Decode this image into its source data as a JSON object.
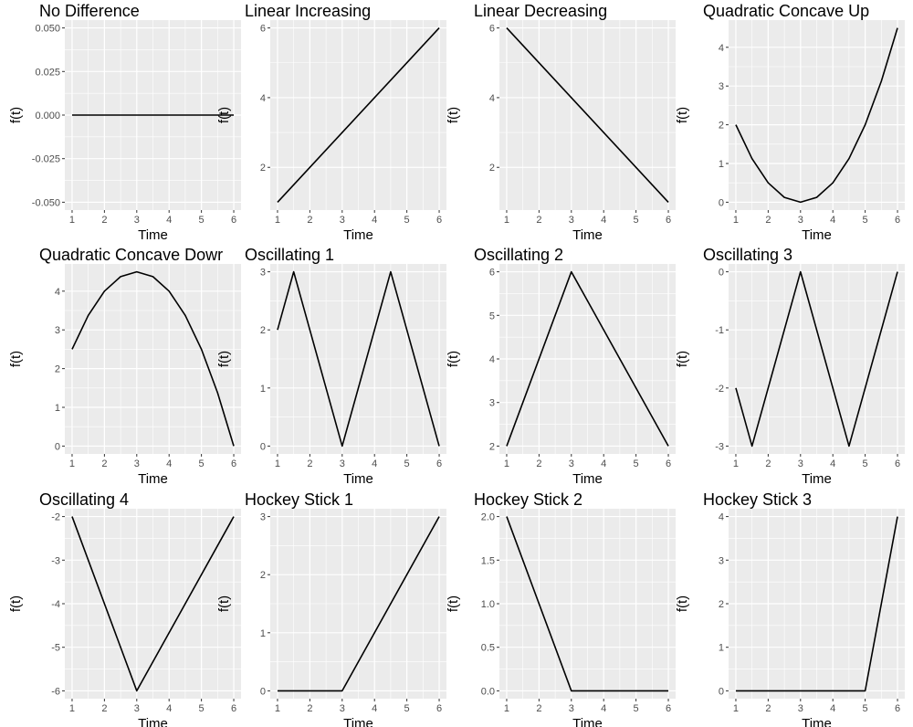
{
  "figure": {
    "background": "#ffffff",
    "panel_background": "#ebebeb",
    "grid_color": "#ffffff",
    "line_color": "#000000"
  },
  "chart_data": [
    {
      "type": "line",
      "title": "No Difference",
      "xlabel": "Time",
      "ylabel": "f(t)",
      "xlim": [
        1,
        6
      ],
      "ylim": [
        -0.05,
        0.05
      ],
      "x_ticks": [
        1,
        2,
        3,
        4,
        5,
        6
      ],
      "x_tick_labels": [
        "1",
        "2",
        "3",
        "4",
        "5",
        "6"
      ],
      "y_ticks": [
        -0.05,
        -0.025,
        0,
        0.025,
        0.05
      ],
      "y_tick_labels": [
        "-0.050",
        "-0.025",
        "0.000",
        "0.025",
        "0.050"
      ],
      "grid": true,
      "curve": "none",
      "series": [
        {
          "x": [
            1,
            6
          ],
          "y": [
            0,
            0
          ]
        }
      ]
    },
    {
      "type": "line",
      "title": "Linear Increasing",
      "xlabel": "Time",
      "ylabel": "f(t)",
      "xlim": [
        1,
        6
      ],
      "ylim": [
        1,
        6
      ],
      "x_ticks": [
        1,
        2,
        3,
        4,
        5,
        6
      ],
      "x_tick_labels": [
        "1",
        "2",
        "3",
        "4",
        "5",
        "6"
      ],
      "y_ticks": [
        2,
        4,
        6
      ],
      "y_tick_labels": [
        "2",
        "4",
        "6"
      ],
      "grid": true,
      "curve": "none",
      "series": [
        {
          "x": [
            1,
            6
          ],
          "y": [
            1,
            6
          ]
        }
      ]
    },
    {
      "type": "line",
      "title": "Linear Decreasing",
      "xlabel": "Time",
      "ylabel": "f(t)",
      "xlim": [
        1,
        6
      ],
      "ylim": [
        1,
        6
      ],
      "x_ticks": [
        1,
        2,
        3,
        4,
        5,
        6
      ],
      "x_tick_labels": [
        "1",
        "2",
        "3",
        "4",
        "5",
        "6"
      ],
      "y_ticks": [
        2,
        4,
        6
      ],
      "y_tick_labels": [
        "2",
        "4",
        "6"
      ],
      "grid": true,
      "curve": "none",
      "series": [
        {
          "x": [
            1,
            6
          ],
          "y": [
            6,
            1
          ]
        }
      ]
    },
    {
      "type": "line",
      "title": "Quadratic Concave Up",
      "xlabel": "Time",
      "ylabel": "f(t)",
      "xlim": [
        1,
        6
      ],
      "ylim": [
        0,
        4.5
      ],
      "x_ticks": [
        1,
        2,
        3,
        4,
        5,
        6
      ],
      "x_tick_labels": [
        "1",
        "2",
        "3",
        "4",
        "5",
        "6"
      ],
      "y_ticks": [
        0,
        1,
        2,
        3,
        4
      ],
      "y_tick_labels": [
        "0",
        "1",
        "2",
        "3",
        "4"
      ],
      "grid": true,
      "curve": "f(t) = 0.5 * (t - 3)^2",
      "series": [
        {
          "x": [
            1,
            1.5,
            2,
            2.5,
            3,
            3.5,
            4,
            4.5,
            5,
            5.5,
            6
          ],
          "y": [
            2,
            1.125,
            0.5,
            0.125,
            0,
            0.125,
            0.5,
            1.125,
            2,
            3.125,
            4.5
          ]
        }
      ]
    },
    {
      "type": "line",
      "title": "Quadratic Concave Dowr",
      "xlabel": "Time",
      "ylabel": "f(t)",
      "xlim": [
        1,
        6
      ],
      "ylim": [
        0,
        4.5
      ],
      "x_ticks": [
        1,
        2,
        3,
        4,
        5,
        6
      ],
      "x_tick_labels": [
        "1",
        "2",
        "3",
        "4",
        "5",
        "6"
      ],
      "y_ticks": [
        0,
        1,
        2,
        3,
        4
      ],
      "y_tick_labels": [
        "0",
        "1",
        "2",
        "3",
        "4"
      ],
      "grid": true,
      "curve": "f(t) = 4.5 - 0.5 * (t - 3)^2",
      "series": [
        {
          "x": [
            1,
            1.5,
            2,
            2.5,
            3,
            3.5,
            4,
            4.5,
            5,
            5.5,
            6
          ],
          "y": [
            2.5,
            3.375,
            4,
            4.375,
            4.5,
            4.375,
            4,
            3.375,
            2.5,
            1.375,
            0
          ]
        }
      ]
    },
    {
      "type": "line",
      "title": "Oscillating 1",
      "xlabel": "Time",
      "ylabel": "f(t)",
      "xlim": [
        1,
        6
      ],
      "ylim": [
        0,
        3
      ],
      "x_ticks": [
        1,
        2,
        3,
        4,
        5,
        6
      ],
      "x_tick_labels": [
        "1",
        "2",
        "3",
        "4",
        "5",
        "6"
      ],
      "y_ticks": [
        0,
        1,
        2,
        3
      ],
      "y_tick_labels": [
        "0",
        "1",
        "2",
        "3"
      ],
      "grid": true,
      "curve": "none",
      "series": [
        {
          "x": [
            1,
            1.5,
            3,
            4.5,
            6
          ],
          "y": [
            2,
            3,
            0,
            3,
            0
          ]
        }
      ]
    },
    {
      "type": "line",
      "title": "Oscillating 2",
      "xlabel": "Time",
      "ylabel": "f(t)",
      "xlim": [
        1,
        6
      ],
      "ylim": [
        2,
        6
      ],
      "x_ticks": [
        1,
        2,
        3,
        4,
        5,
        6
      ],
      "x_tick_labels": [
        "1",
        "2",
        "3",
        "4",
        "5",
        "6"
      ],
      "y_ticks": [
        2,
        3,
        4,
        5,
        6
      ],
      "y_tick_labels": [
        "2",
        "3",
        "4",
        "5",
        "6"
      ],
      "grid": true,
      "curve": "none",
      "series": [
        {
          "x": [
            1,
            3,
            6
          ],
          "y": [
            2,
            6,
            2
          ]
        }
      ]
    },
    {
      "type": "line",
      "title": "Oscillating 3",
      "xlabel": "Time",
      "ylabel": "f(t)",
      "xlim": [
        1,
        6
      ],
      "ylim": [
        -3,
        0
      ],
      "x_ticks": [
        1,
        2,
        3,
        4,
        5,
        6
      ],
      "x_tick_labels": [
        "1",
        "2",
        "3",
        "4",
        "5",
        "6"
      ],
      "y_ticks": [
        -3,
        -2,
        -1,
        0
      ],
      "y_tick_labels": [
        "-3",
        "-2",
        "-1",
        "0"
      ],
      "grid": true,
      "curve": "none",
      "series": [
        {
          "x": [
            1,
            1.5,
            3,
            4.5,
            6
          ],
          "y": [
            -2,
            -3,
            0,
            -3,
            0
          ]
        }
      ]
    },
    {
      "type": "line",
      "title": "Oscillating 4",
      "xlabel": "Time",
      "ylabel": "f(t)",
      "xlim": [
        1,
        6
      ],
      "ylim": [
        -6,
        -2
      ],
      "x_ticks": [
        1,
        2,
        3,
        4,
        5,
        6
      ],
      "x_tick_labels": [
        "1",
        "2",
        "3",
        "4",
        "5",
        "6"
      ],
      "y_ticks": [
        -6,
        -5,
        -4,
        -3,
        -2
      ],
      "y_tick_labels": [
        "-6",
        "-5",
        "-4",
        "-3",
        "-2"
      ],
      "grid": true,
      "curve": "none",
      "series": [
        {
          "x": [
            1,
            3,
            6
          ],
          "y": [
            -2,
            -6,
            -2
          ]
        }
      ]
    },
    {
      "type": "line",
      "title": "Hockey Stick 1",
      "xlabel": "Time",
      "ylabel": "f(t)",
      "xlim": [
        1,
        6
      ],
      "ylim": [
        0,
        3
      ],
      "x_ticks": [
        1,
        2,
        3,
        4,
        5,
        6
      ],
      "x_tick_labels": [
        "1",
        "2",
        "3",
        "4",
        "5",
        "6"
      ],
      "y_ticks": [
        0,
        1,
        2,
        3
      ],
      "y_tick_labels": [
        "0",
        "1",
        "2",
        "3"
      ],
      "grid": true,
      "curve": "none",
      "series": [
        {
          "x": [
            1,
            3,
            6
          ],
          "y": [
            0,
            0,
            3
          ]
        }
      ]
    },
    {
      "type": "line",
      "title": "Hockey Stick 2",
      "xlabel": "Time",
      "ylabel": "f(t)",
      "xlim": [
        1,
        6
      ],
      "ylim": [
        0,
        2
      ],
      "x_ticks": [
        1,
        2,
        3,
        4,
        5,
        6
      ],
      "x_tick_labels": [
        "1",
        "2",
        "3",
        "4",
        "5",
        "6"
      ],
      "y_ticks": [
        0,
        0.5,
        1,
        1.5,
        2
      ],
      "y_tick_labels": [
        "0.0",
        "0.5",
        "1.0",
        "1.5",
        "2.0"
      ],
      "grid": true,
      "curve": "none",
      "series": [
        {
          "x": [
            1,
            3,
            6
          ],
          "y": [
            2,
            0,
            0
          ]
        }
      ]
    },
    {
      "type": "line",
      "title": "Hockey Stick 3",
      "xlabel": "Time",
      "ylabel": "f(t)",
      "xlim": [
        1,
        6
      ],
      "ylim": [
        0,
        4
      ],
      "x_ticks": [
        1,
        2,
        3,
        4,
        5,
        6
      ],
      "x_tick_labels": [
        "1",
        "2",
        "3",
        "4",
        "5",
        "6"
      ],
      "y_ticks": [
        0,
        1,
        2,
        3,
        4
      ],
      "y_tick_labels": [
        "0",
        "1",
        "2",
        "3",
        "4"
      ],
      "grid": true,
      "curve": "none",
      "series": [
        {
          "x": [
            1,
            5,
            6
          ],
          "y": [
            0,
            0,
            4
          ]
        }
      ]
    }
  ]
}
